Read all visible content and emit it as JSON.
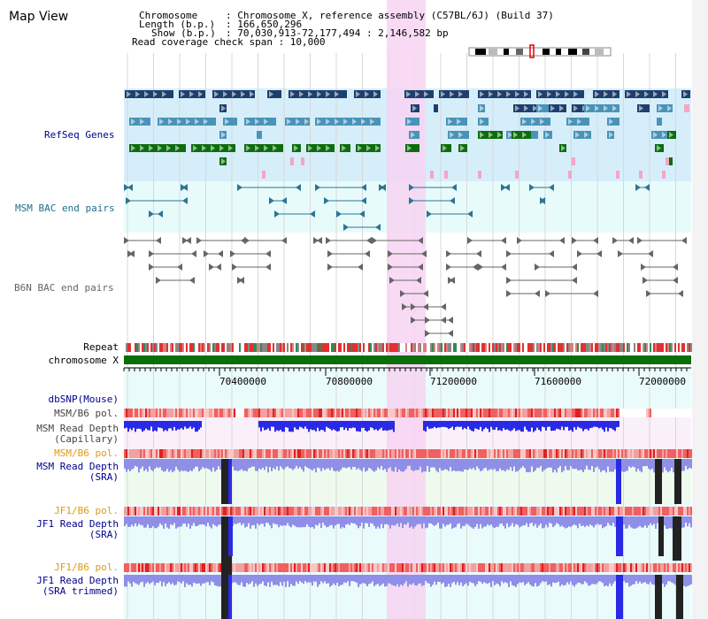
{
  "title": "Map View",
  "info": {
    "chromosome_label": "Chromosome",
    "chromosome_value": ": Chromosome X, reference assembly (C57BL/6J) (Build 37)",
    "length_label": "Length (b.p.)",
    "length_value": ": 166,650,296",
    "show_label": "Show (b.p.)",
    "show_value": ": 70,030,913-72,177,494 : 2,146,582 bp",
    "span": "Read coverage check span : 10,000"
  },
  "tracks": {
    "refseq": "RefSeq Genes",
    "msm_bac": "MSM BAC end pairs",
    "b6n_bac": "B6N BAC end pairs",
    "repeat": "Repeat",
    "chromosome": "chromosome X",
    "dbsnp": "dbSNP(Mouse)",
    "msm_pol": "MSM/B6 pol.",
    "msm_depth_cap_1": "MSM Read Depth",
    "msm_depth_cap_2": "(Capillary)",
    "msm_pol2": "MSM/B6 pol.",
    "msm_depth_sra_1": "MSM Read Depth",
    "msm_depth_sra_2": "(SRA)",
    "jf1_pol": "JF1/B6 pol.",
    "jf1_depth_sra_1": "JF1 Read Depth",
    "jf1_depth_sra_2": "(SRA)",
    "jf1_pol2": "JF1/B6 pol.",
    "jf1_depth_trim_1": "JF1 Read Depth",
    "jf1_depth_trim_2": "(SRA trimmed)"
  },
  "axis": {
    "ticks": [
      "70400000",
      "70800000",
      "71200000",
      "71600000",
      "72000000"
    ]
  },
  "colors": {
    "refseq_bg": "#d6eefa",
    "bac_bg": "#e8fbfb",
    "highlight": "#f7d3f2",
    "gene_dark": "#1e3f6e",
    "gene_mid": "#4a93b8",
    "gene_green": "#0d6d0d",
    "pink": "#f6a4c8",
    "msm_bac": "#2b7595",
    "b6n_bac": "#666666",
    "chrom": "#0a6e0a",
    "depth_blue": "#2a2ae6",
    "depth_light": "#8f8fe8",
    "pol_red": "#f05050",
    "label_navy": "#00008b",
    "label_teal": "#1f6e8c",
    "label_orange": "#e09a10"
  }
}
